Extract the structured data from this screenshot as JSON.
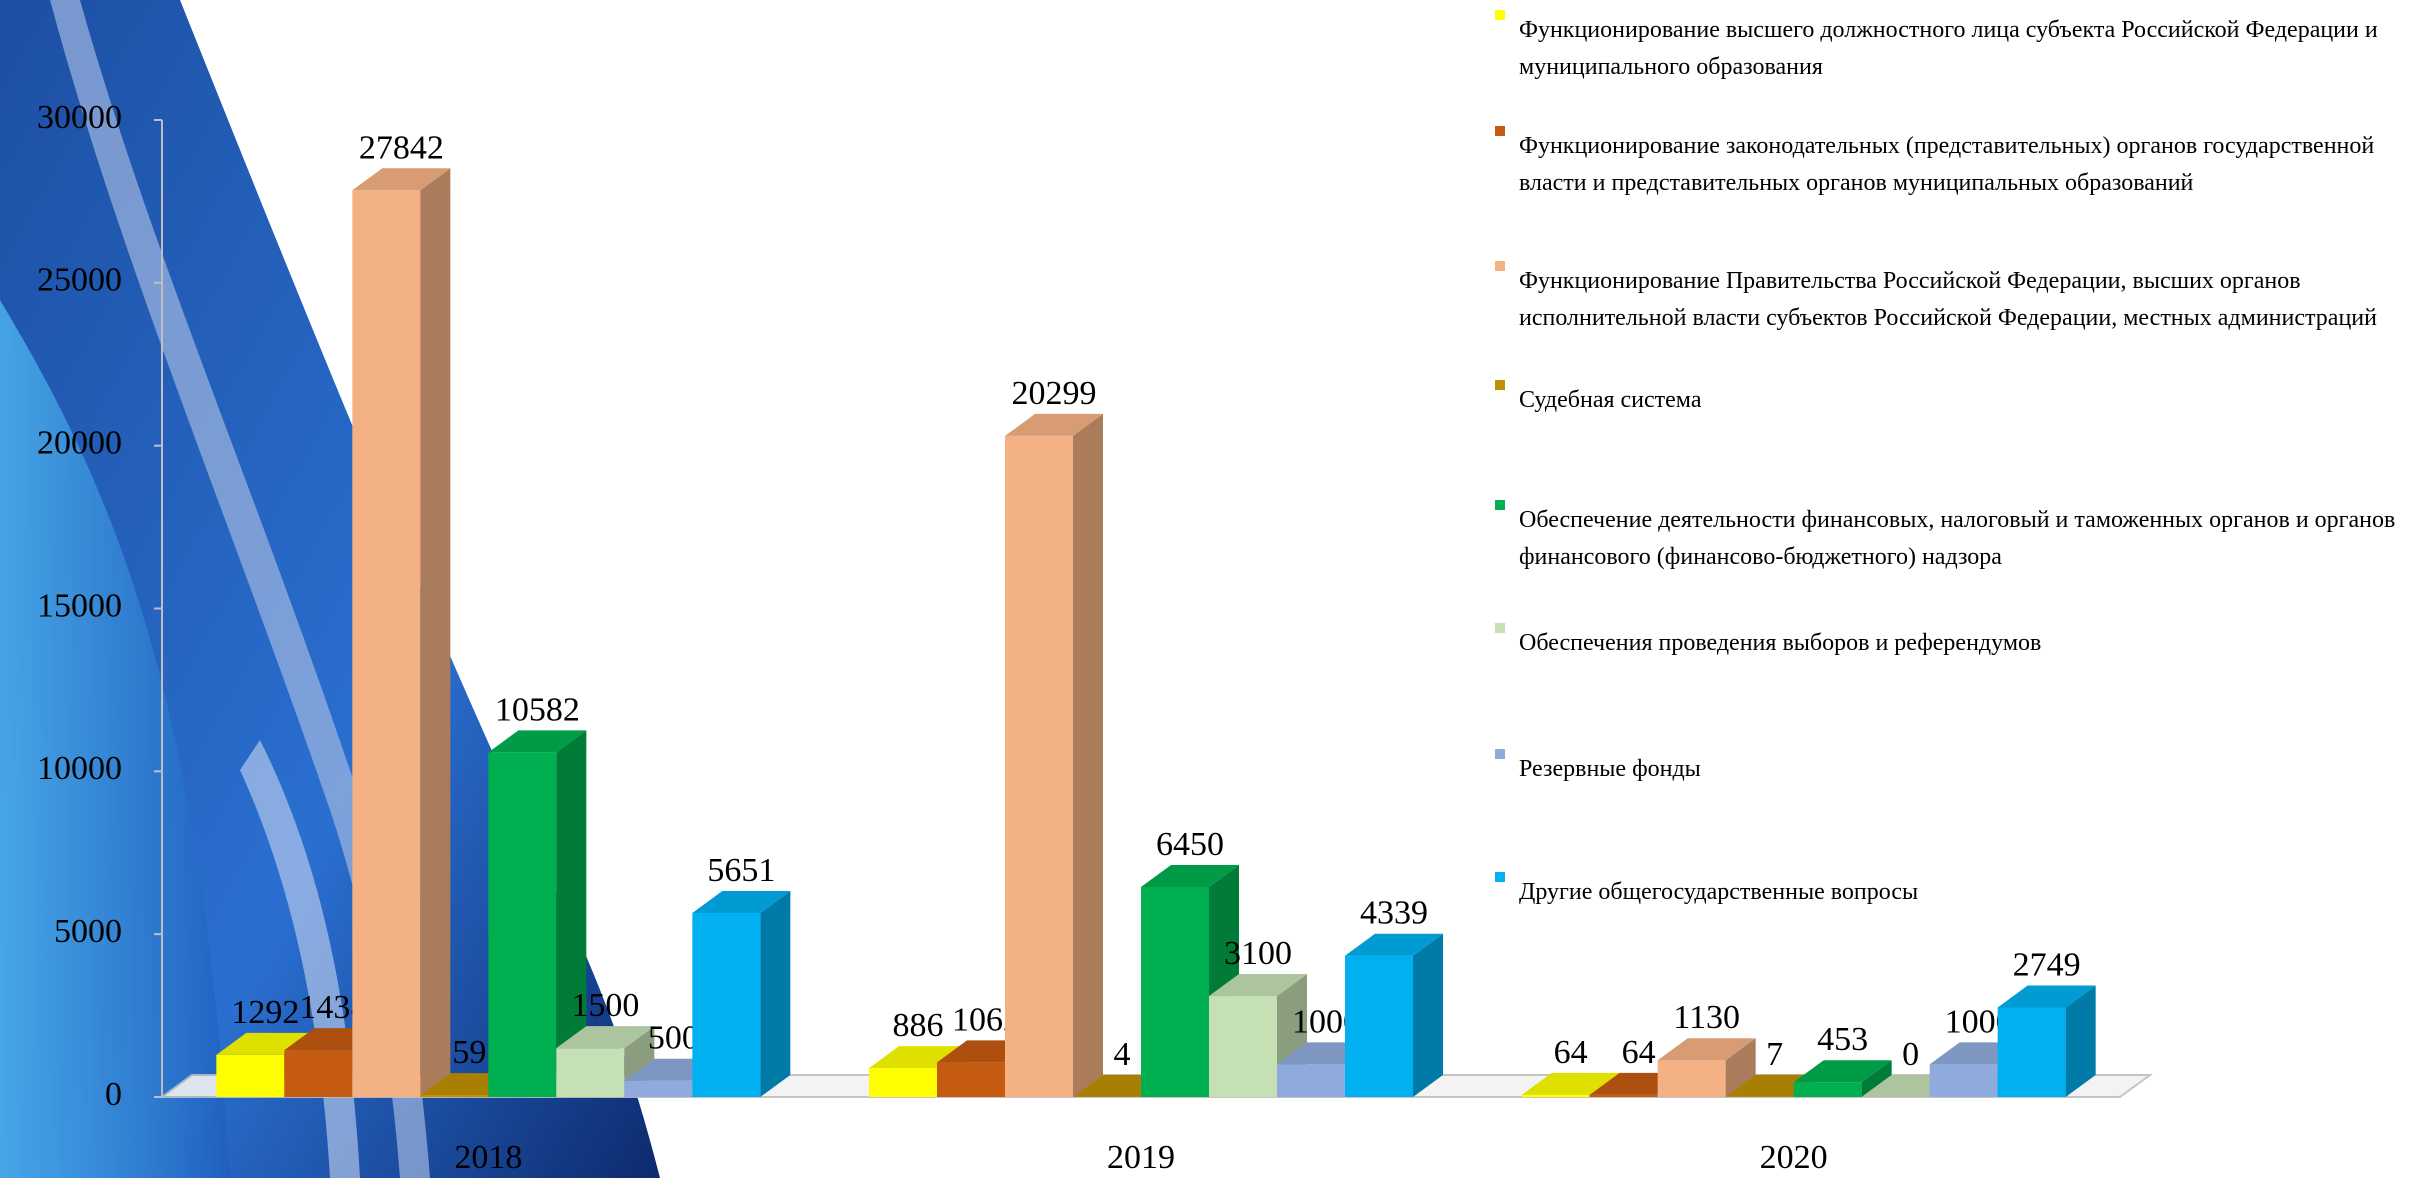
{
  "chart_data": {
    "type": "bar",
    "categories": [
      "2018",
      "2019",
      "2020"
    ],
    "series": [
      {
        "name": "Функционирование высшего должностного лица субъекта Российской Федерации и муниципального образования",
        "color": "#ffff00",
        "values": [
          1292,
          886,
          64
        ]
      },
      {
        "name": "Функционирование законодательных (представительных) органов государственной власти и представительных органов муниципальных образований",
        "color": "#c55a11",
        "values": [
          1438,
          1062,
          64
        ]
      },
      {
        "name": "Функционирование Правительства Российской Федерации, высших органов исполнительной власти субъектов Российской Федерации, местных администраций",
        "color": "#f4b183",
        "values": [
          27842,
          20299,
          1130
        ]
      },
      {
        "name": "Судебная система",
        "color": "#bf9000",
        "values": [
          59,
          4,
          7
        ]
      },
      {
        "name": "Обеспечение деятельности финансовых, налоговый и таможенных органов и органов финансового (финансово-бюджетного) надзора",
        "color": "#00b050",
        "values": [
          10582,
          6450,
          453
        ]
      },
      {
        "name": "Обеспечения проведения выборов и референдумов",
        "color": "#c5e0b4",
        "values": [
          1500,
          3100,
          0
        ]
      },
      {
        "name": "Резервные фонды",
        "color": "#8faadc",
        "values": [
          500,
          1000,
          1000
        ]
      },
      {
        "name": "Другие общегосударственные вопросы",
        "color": "#00b0f0",
        "values": [
          5651,
          4339,
          2749
        ]
      }
    ],
    "ylim": [
      0,
      30000
    ],
    "yticks": [
      0,
      5000,
      10000,
      15000,
      20000,
      25000,
      30000
    ],
    "legend": "right"
  }
}
